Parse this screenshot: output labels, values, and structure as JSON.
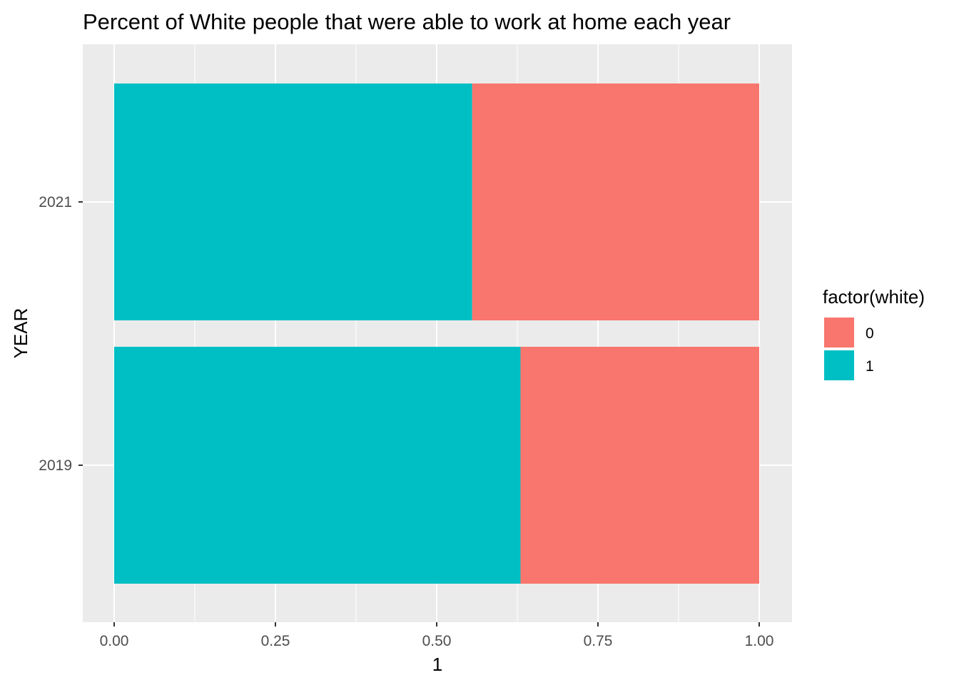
{
  "chart_data": {
    "type": "bar",
    "orientation": "horizontal",
    "stacked": "fill",
    "title": "Percent of White people that were able to work at home each year",
    "xlabel": "1",
    "ylabel": "YEAR",
    "xlim": [
      0,
      1
    ],
    "x_ticks": [
      "0.00",
      "0.25",
      "0.50",
      "0.75",
      "1.00"
    ],
    "x_tick_values": [
      0,
      0.25,
      0.5,
      0.75,
      1.0
    ],
    "categories": [
      "2019",
      "2021"
    ],
    "series": [
      {
        "name": "1",
        "color": "#00BFC4",
        "values": [
          0.63,
          0.555
        ]
      },
      {
        "name": "0",
        "color": "#F8766D",
        "values": [
          0.37,
          0.445
        ]
      }
    ],
    "legend": {
      "title": "factor(white)",
      "position": "right",
      "entries": [
        {
          "label": "0",
          "color": "#F8766D"
        },
        {
          "label": "1",
          "color": "#00BFC4"
        }
      ]
    },
    "grid": true,
    "panel_background": "#EBEBEB",
    "gridline_color": "#FFFFFF"
  }
}
